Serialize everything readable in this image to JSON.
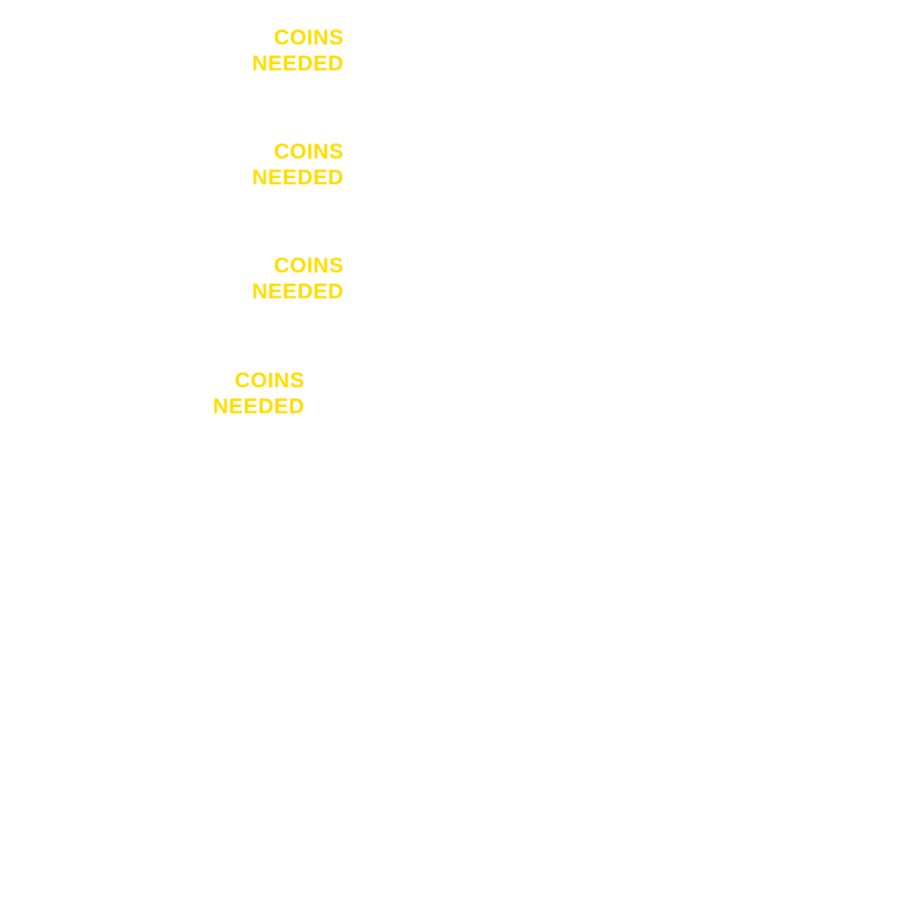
{
  "colors": {
    "background": "#ffffff",
    "label_text": "#FFDD00"
  },
  "labels": [
    {
      "line1": "COINS",
      "line2": "NEEDED"
    },
    {
      "line1": "COINS",
      "line2": "NEEDED"
    },
    {
      "line1": "COINS",
      "line2": "NEEDED"
    },
    {
      "line1": "COINS",
      "line2": "NEEDED"
    }
  ]
}
